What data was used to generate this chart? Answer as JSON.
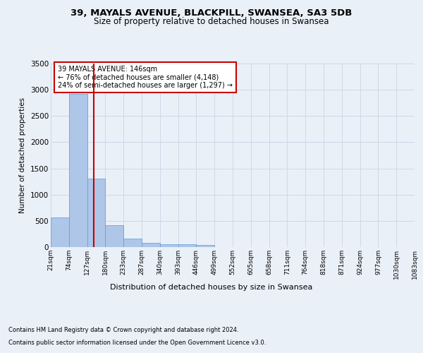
{
  "title_line1": "39, MAYALS AVENUE, BLACKPILL, SWANSEA, SA3 5DB",
  "title_line2": "Size of property relative to detached houses in Swansea",
  "xlabel": "Distribution of detached houses by size in Swansea",
  "ylabel": "Number of detached properties",
  "footer_line1": "Contains HM Land Registry data © Crown copyright and database right 2024.",
  "footer_line2": "Contains public sector information licensed under the Open Government Licence v3.0.",
  "annotation_title": "39 MAYALS AVENUE: 146sqm",
  "annotation_line2": "← 76% of detached houses are smaller (4,148)",
  "annotation_line3": "24% of semi-detached houses are larger (1,297) →",
  "property_size": 146,
  "bin_edges": [
    21,
    74,
    127,
    180,
    233,
    287,
    340,
    393,
    446,
    499,
    552,
    605,
    658,
    711,
    764,
    818,
    871,
    924,
    977,
    1030,
    1083
  ],
  "bar_heights": [
    570,
    2920,
    1310,
    420,
    155,
    80,
    60,
    50,
    45,
    0,
    0,
    0,
    0,
    0,
    0,
    0,
    0,
    0,
    0,
    0
  ],
  "bar_color": "#aec6e8",
  "bar_edgecolor": "#5b9bd5",
  "vline_color": "#cc0000",
  "vline_x": 146,
  "annotation_box_edgecolor": "#cc0000",
  "annotation_box_facecolor": "#ffffff",
  "grid_color": "#d0d8e8",
  "background_color": "#eaf0f8",
  "ylim": [
    0,
    3500
  ],
  "yticks": [
    0,
    500,
    1000,
    1500,
    2000,
    2500,
    3000,
    3500
  ]
}
